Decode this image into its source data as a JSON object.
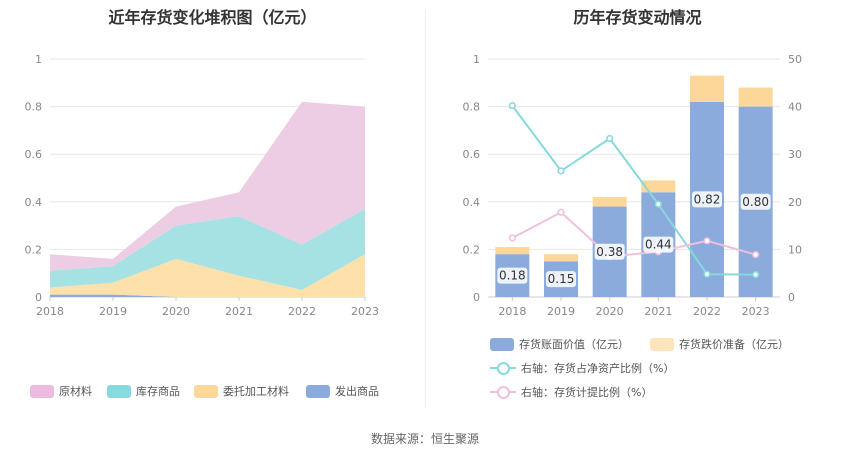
{
  "source": "数据来源：恒生聚源",
  "chart_data": [
    {
      "type": "area",
      "stacked": true,
      "title": "近年存货变化堆积图（亿元）",
      "x": [
        "2018",
        "2019",
        "2020",
        "2021",
        "2022",
        "2023"
      ],
      "ylim": [
        0,
        1
      ],
      "yticks": [
        "0",
        "0.2",
        "0.4",
        "0.6",
        "0.8",
        "1"
      ],
      "grid": true,
      "legend_position": "bottom",
      "series": [
        {
          "name": "发出商品",
          "color": "#8aabdc",
          "values": [
            0.01,
            0.01,
            0.0,
            0.0,
            0.0,
            0.0
          ]
        },
        {
          "name": "委托加工材料",
          "color": "#fde0aa",
          "values": [
            0.03,
            0.05,
            0.16,
            0.09,
            0.03,
            0.18
          ]
        },
        {
          "name": "库存商品",
          "color": "#a6e1e3",
          "values": [
            0.07,
            0.07,
            0.14,
            0.25,
            0.19,
            0.19
          ]
        },
        {
          "name": "原材料",
          "color": "#edcde4",
          "values": [
            0.07,
            0.03,
            0.08,
            0.1,
            0.6,
            0.43
          ]
        }
      ]
    },
    {
      "type": "bar",
      "stacked": true,
      "title": "历年存货变动情况",
      "categories": [
        "2018",
        "2019",
        "2020",
        "2021",
        "2022",
        "2023"
      ],
      "ylim": [
        0,
        1
      ],
      "yticks": [
        "0",
        "0.2",
        "0.4",
        "0.6",
        "0.8",
        "1"
      ],
      "y2lim": [
        0,
        50
      ],
      "y2ticks": [
        "0",
        "10",
        "20",
        "30",
        "40",
        "50"
      ],
      "grid": true,
      "legend_position": "bottom",
      "series": [
        {
          "name": "存货账面价值（亿元）",
          "color": "#8aabdc",
          "values": [
            0.18,
            0.15,
            0.38,
            0.44,
            0.82,
            0.8
          ],
          "labels": [
            "0.18",
            "0.15",
            "0.38",
            "0.44",
            "0.82",
            "0.80"
          ]
        },
        {
          "name": "存货跌价准备（亿元）",
          "color": "#fdd79a",
          "values": [
            0.03,
            0.03,
            0.04,
            0.05,
            0.11,
            0.08
          ]
        }
      ],
      "line_series": [
        {
          "name": "右轴：存货占净资产比例（%）",
          "color": "#86d9dc",
          "axis": "right",
          "values": [
            40.2,
            26.5,
            33.3,
            19.5,
            4.8,
            4.7
          ]
        },
        {
          "name": "右轴：存货计提比例（%）",
          "color": "#f0bfdc",
          "axis": "right",
          "values": [
            12.4,
            17.8,
            8.5,
            9.5,
            11.8,
            8.9
          ]
        }
      ]
    }
  ]
}
